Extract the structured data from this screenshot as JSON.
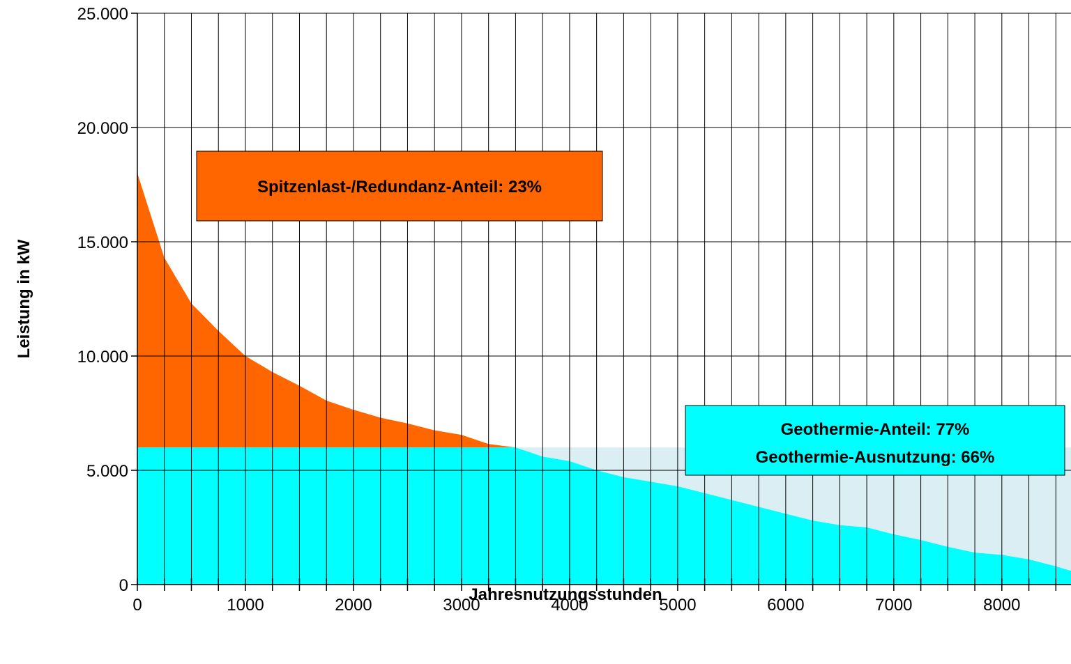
{
  "chart_data": {
    "type": "area",
    "xlabel": "Jahresnutzungsstunden",
    "ylabel": "Leistung in kW",
    "xlim": [
      0,
      8640
    ],
    "ylim": [
      0,
      25000
    ],
    "x_ticks": [
      0,
      1000,
      2000,
      3000,
      4000,
      5000,
      6000,
      7000,
      8000
    ],
    "x_tick_labels": [
      "0",
      "1000",
      "2000",
      "3000",
      "4000",
      "5000",
      "6000",
      "7000",
      "8000"
    ],
    "y_ticks": [
      0,
      5000,
      10000,
      15000,
      20000,
      25000
    ],
    "y_tick_labels": [
      "0",
      "5.000",
      "10.000",
      "15.000",
      "20.000",
      "25.000"
    ],
    "x_minor_step": 250,
    "grid": "vertical lines every 250 h, horizontal lines at major y ticks",
    "geothermal_capacity_kw": 6000,
    "load_curve": {
      "x": [
        0,
        250,
        500,
        750,
        1000,
        1250,
        1500,
        1750,
        2000,
        2250,
        2500,
        2750,
        3000,
        3250,
        3500,
        3750,
        4000,
        4250,
        4500,
        4750,
        5000,
        5250,
        5500,
        5750,
        6000,
        6250,
        6500,
        6750,
        7000,
        7250,
        7500,
        7750,
        8000,
        8250,
        8500,
        8640
      ],
      "y": [
        18000,
        14300,
        12300,
        11100,
        10000,
        9300,
        8700,
        8050,
        7650,
        7300,
        7050,
        6750,
        6550,
        6150,
        6000,
        5600,
        5400,
        5000,
        4700,
        4500,
        4300,
        4000,
        3700,
        3400,
        3100,
        2800,
        2600,
        2500,
        2200,
        1950,
        1650,
        1400,
        1300,
        1100,
        800,
        600
      ]
    },
    "series": [
      {
        "name": "Spitzenlast-/Redundanz-Anteil",
        "color": "#ff6600"
      },
      {
        "name": "Geothermie-Anteil",
        "color": "#00ffff"
      },
      {
        "name": "Geothermie-Ausnutzung",
        "color": "#daeef3"
      }
    ],
    "annotations": {
      "peak_box": {
        "text": "Spitzenlast-/Redundanz-Anteil: 23%",
        "fill": "#ff6600"
      },
      "geo_box": {
        "line1": "Geothermie-Anteil: 77%",
        "line2": "Geothermie-Ausnutzung: 66%",
        "fill": "#00ffff"
      }
    }
  }
}
